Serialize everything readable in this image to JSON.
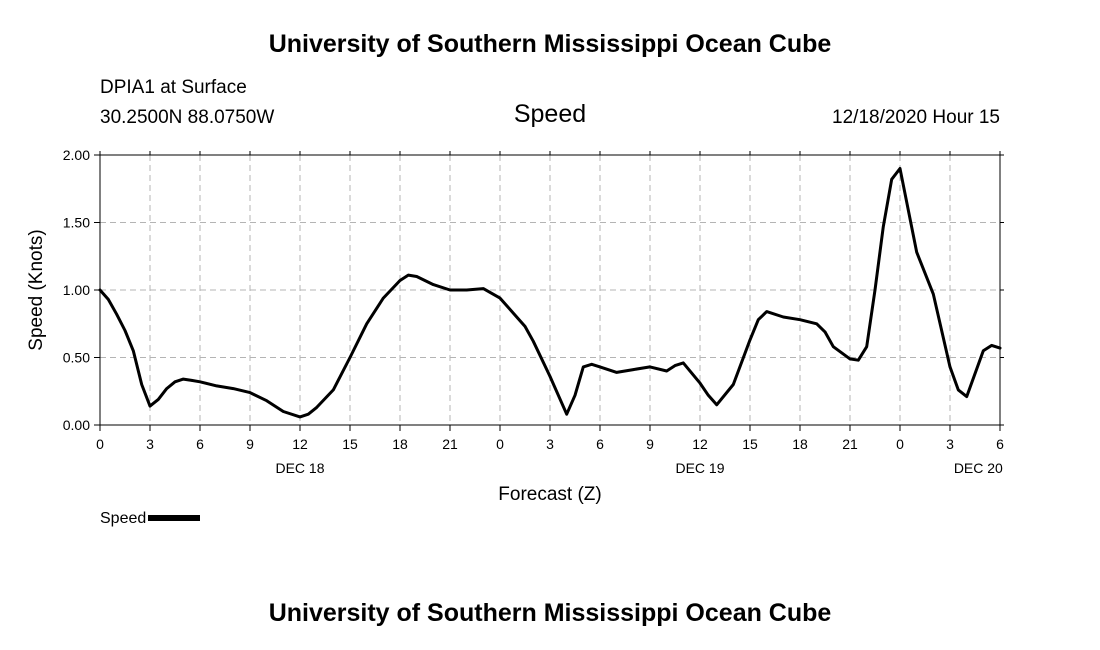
{
  "header": {
    "title": "University of Southern Mississippi Ocean Cube",
    "station": "DPIA1 at Surface",
    "coordinates": "30.2500N 88.0750W",
    "chart_title": "Speed",
    "valid_time": "12/18/2020 Hour 15"
  },
  "footer": {
    "title": "University of Southern Mississippi Ocean Cube"
  },
  "legend": {
    "label": "Speed",
    "color": "#000000"
  },
  "chart_data": {
    "type": "line",
    "title": "Speed",
    "xlabel": "Forecast (Z)",
    "ylabel": "Speed (Knots)",
    "xlim": [
      0,
      54
    ],
    "ylim": [
      0,
      2
    ],
    "grid": true,
    "legend_position": "bottom-left",
    "y_ticks": [
      {
        "value": 0,
        "label": "0.00"
      },
      {
        "value": 0.5,
        "label": "0.50"
      },
      {
        "value": 1,
        "label": "1.00"
      },
      {
        "value": 1.5,
        "label": "1.50"
      },
      {
        "value": 2,
        "label": "2.00"
      }
    ],
    "x_ticks": [
      {
        "value": 0,
        "label": "0"
      },
      {
        "value": 3,
        "label": "3"
      },
      {
        "value": 6,
        "label": "6"
      },
      {
        "value": 9,
        "label": "9"
      },
      {
        "value": 12,
        "label": "12"
      },
      {
        "value": 15,
        "label": "15"
      },
      {
        "value": 18,
        "label": "18"
      },
      {
        "value": 21,
        "label": "21"
      },
      {
        "value": 24,
        "label": "0"
      },
      {
        "value": 27,
        "label": "3"
      },
      {
        "value": 30,
        "label": "6"
      },
      {
        "value": 33,
        "label": "9"
      },
      {
        "value": 36,
        "label": "12"
      },
      {
        "value": 39,
        "label": "15"
      },
      {
        "value": 42,
        "label": "18"
      },
      {
        "value": 45,
        "label": "21"
      },
      {
        "value": 48,
        "label": "0"
      },
      {
        "value": 51,
        "label": "3"
      },
      {
        "value": 54,
        "label": "6"
      }
    ],
    "date_labels": [
      {
        "value": 12,
        "label": "DEC 18"
      },
      {
        "value": 36,
        "label": "DEC 19"
      },
      {
        "value": 52.7,
        "label": "DEC 20"
      }
    ],
    "series": [
      {
        "name": "Speed",
        "color": "#000000",
        "x": [
          0,
          0.5,
          1,
          1.5,
          2,
          2.5,
          3,
          3.5,
          4,
          4.5,
          5,
          5.5,
          6,
          7,
          8,
          9,
          10,
          11,
          12,
          12.5,
          13,
          14,
          15,
          16,
          17,
          18,
          18.5,
          19,
          20,
          21,
          22,
          23,
          24,
          25,
          25.5,
          26,
          27,
          28,
          28.5,
          29,
          29.5,
          30,
          31,
          32,
          33,
          34,
          34.5,
          35,
          36,
          36.5,
          37,
          38,
          39,
          39.5,
          40,
          41,
          42,
          43,
          43.5,
          44,
          45,
          45.5,
          46,
          46.5,
          47,
          47.5,
          48,
          49,
          50,
          51,
          51.5,
          52,
          53,
          53.5,
          54
        ],
        "values": [
          1.0,
          0.93,
          0.82,
          0.7,
          0.55,
          0.3,
          0.14,
          0.19,
          0.27,
          0.32,
          0.34,
          0.33,
          0.32,
          0.29,
          0.27,
          0.24,
          0.18,
          0.1,
          0.06,
          0.08,
          0.13,
          0.26,
          0.5,
          0.75,
          0.94,
          1.07,
          1.11,
          1.1,
          1.04,
          1.0,
          1.0,
          1.01,
          0.94,
          0.8,
          0.73,
          0.62,
          0.36,
          0.08,
          0.22,
          0.43,
          0.45,
          0.43,
          0.39,
          0.41,
          0.43,
          0.4,
          0.44,
          0.46,
          0.31,
          0.22,
          0.15,
          0.3,
          0.63,
          0.78,
          0.84,
          0.8,
          0.78,
          0.75,
          0.69,
          0.58,
          0.49,
          0.48,
          0.58,
          1.0,
          1.47,
          1.82,
          1.9,
          1.28,
          0.97,
          0.43,
          0.26,
          0.21,
          0.55,
          0.59,
          0.57
        ]
      }
    ]
  }
}
